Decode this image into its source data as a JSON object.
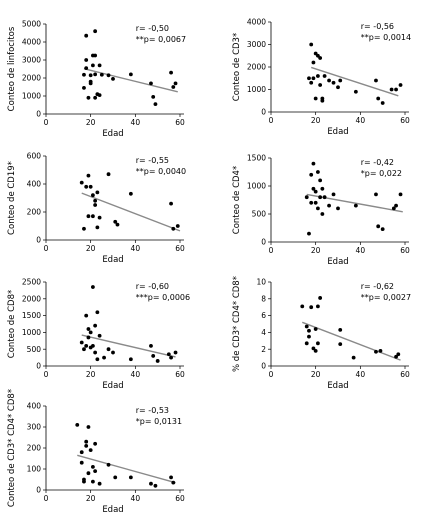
{
  "chart_data": [
    {
      "type": "scatter",
      "ylabel": "Conteo de linfocitos",
      "xlabel": "Edad",
      "r_text": "r= -0,50",
      "p_text": "**p= 0,0067",
      "xlim": [
        0,
        60
      ],
      "xticks": [
        0,
        20,
        40,
        60
      ],
      "ylim": [
        0,
        5000
      ],
      "yticks": [
        0,
        1000,
        2000,
        3000,
        4000,
        5000
      ],
      "trend": [
        [
          17,
          2520
        ],
        [
          59,
          1230
        ]
      ],
      "points": [
        [
          17,
          2180
        ],
        [
          17,
          1450
        ],
        [
          18,
          2550
        ],
        [
          18,
          4350
        ],
        [
          18,
          3000
        ],
        [
          19,
          900
        ],
        [
          20,
          2150
        ],
        [
          20,
          1800
        ],
        [
          20,
          1700
        ],
        [
          21,
          3250
        ],
        [
          21,
          2700
        ],
        [
          22,
          4600
        ],
        [
          22,
          3250
        ],
        [
          22,
          2200
        ],
        [
          22,
          900
        ],
        [
          23,
          1100
        ],
        [
          24,
          1050
        ],
        [
          24,
          2700
        ],
        [
          25,
          2180
        ],
        [
          28,
          2150
        ],
        [
          30,
          1950
        ],
        [
          38,
          2200
        ],
        [
          47,
          1700
        ],
        [
          48,
          950
        ],
        [
          49,
          550
        ],
        [
          56,
          2300
        ],
        [
          57,
          1500
        ],
        [
          58,
          1700
        ]
      ]
    },
    {
      "type": "scatter",
      "ylabel": "Conteo de CD3*",
      "xlabel": "Edad",
      "r_text": "r= -0,56",
      "p_text": "**p= 0,0014",
      "xlim": [
        0,
        60
      ],
      "xticks": [
        0,
        20,
        40,
        60
      ],
      "ylim": [
        0,
        4000
      ],
      "yticks": [
        0,
        1000,
        2000,
        3000,
        4000
      ],
      "trend": [
        [
          18,
          1980
        ],
        [
          57,
          720
        ]
      ],
      "points": [
        [
          17,
          1500
        ],
        [
          18,
          1300
        ],
        [
          18,
          3000
        ],
        [
          19,
          2200
        ],
        [
          19,
          1500
        ],
        [
          20,
          2600
        ],
        [
          20,
          600
        ],
        [
          21,
          2500
        ],
        [
          21,
          1600
        ],
        [
          22,
          2400
        ],
        [
          22,
          1200
        ],
        [
          23,
          500
        ],
        [
          23,
          600
        ],
        [
          24,
          1600
        ],
        [
          26,
          1400
        ],
        [
          28,
          1300
        ],
        [
          30,
          1100
        ],
        [
          31,
          1400
        ],
        [
          38,
          900
        ],
        [
          47,
          1400
        ],
        [
          48,
          600
        ],
        [
          50,
          400
        ],
        [
          54,
          1000
        ],
        [
          56,
          1000
        ],
        [
          58,
          1200
        ]
      ]
    },
    {
      "type": "scatter",
      "ylabel": "Conteo de CD19*",
      "xlabel": "Edad",
      "r_text": "r= -0,55",
      "p_text": "**p= 0,0040",
      "xlim": [
        0,
        60
      ],
      "xticks": [
        0,
        20,
        40,
        60
      ],
      "ylim": [
        0,
        600
      ],
      "yticks": [
        0,
        200,
        400,
        600
      ],
      "trend": [
        [
          16,
          335
        ],
        [
          60,
          65
        ]
      ],
      "points": [
        [
          16,
          410
        ],
        [
          17,
          80
        ],
        [
          18,
          380
        ],
        [
          19,
          170
        ],
        [
          19,
          460
        ],
        [
          20,
          380
        ],
        [
          21,
          320
        ],
        [
          21,
          170
        ],
        [
          22,
          280
        ],
        [
          22,
          250
        ],
        [
          23,
          340
        ],
        [
          23,
          90
        ],
        [
          24,
          160
        ],
        [
          28,
          470
        ],
        [
          31,
          130
        ],
        [
          32,
          110
        ],
        [
          38,
          330
        ],
        [
          56,
          260
        ],
        [
          57,
          80
        ],
        [
          59,
          100
        ]
      ]
    },
    {
      "type": "scatter",
      "ylabel": "Conteo de CD4*",
      "xlabel": "Edad",
      "r_text": "r= -0,42",
      "p_text": "*p= 0,022",
      "xlim": [
        0,
        60
      ],
      "xticks": [
        0,
        20,
        40,
        60
      ],
      "ylim": [
        0,
        1500
      ],
      "yticks": [
        0,
        500,
        1000,
        1500
      ],
      "trend": [
        [
          16,
          850
        ],
        [
          59,
          540
        ]
      ],
      "points": [
        [
          16,
          800
        ],
        [
          17,
          150
        ],
        [
          18,
          1200
        ],
        [
          18,
          700
        ],
        [
          19,
          1400
        ],
        [
          19,
          950
        ],
        [
          20,
          900
        ],
        [
          20,
          700
        ],
        [
          21,
          1250
        ],
        [
          21,
          600
        ],
        [
          22,
          1100
        ],
        [
          22,
          800
        ],
        [
          23,
          950
        ],
        [
          23,
          500
        ],
        [
          24,
          800
        ],
        [
          26,
          650
        ],
        [
          28,
          850
        ],
        [
          30,
          600
        ],
        [
          38,
          650
        ],
        [
          47,
          850
        ],
        [
          48,
          280
        ],
        [
          50,
          230
        ],
        [
          55,
          600
        ],
        [
          56,
          650
        ],
        [
          58,
          850
        ]
      ]
    },
    {
      "type": "scatter",
      "ylabel": "Conteo de CD8*",
      "xlabel": "Edad",
      "r_text": "r= -0,60",
      "p_text": "***p= 0,0006",
      "xlim": [
        0,
        60
      ],
      "xticks": [
        0,
        20,
        40,
        60
      ],
      "ylim": [
        0,
        2500
      ],
      "yticks": [
        0,
        500,
        1000,
        1500,
        2000,
        2500
      ],
      "trend": [
        [
          16,
          920
        ],
        [
          58,
          270
        ]
      ],
      "points": [
        [
          16,
          700
        ],
        [
          17,
          500
        ],
        [
          18,
          600
        ],
        [
          18,
          1500
        ],
        [
          19,
          850
        ],
        [
          19,
          1100
        ],
        [
          20,
          550
        ],
        [
          20,
          1000
        ],
        [
          21,
          600
        ],
        [
          21,
          2350
        ],
        [
          22,
          400
        ],
        [
          22,
          1200
        ],
        [
          23,
          200
        ],
        [
          23,
          1600
        ],
        [
          24,
          900
        ],
        [
          26,
          250
        ],
        [
          28,
          500
        ],
        [
          30,
          400
        ],
        [
          38,
          200
        ],
        [
          47,
          600
        ],
        [
          48,
          300
        ],
        [
          50,
          150
        ],
        [
          55,
          350
        ],
        [
          56,
          250
        ],
        [
          58,
          400
        ]
      ]
    },
    {
      "type": "scatter",
      "ylabel": "% de CD3* CD4* CD8*",
      "xlabel": "Edad",
      "r_text": "r= -0,62",
      "p_text": "**p= 0,0027",
      "xlim": [
        0,
        60
      ],
      "xticks": [
        0,
        20,
        40,
        60
      ],
      "ylim": [
        0,
        10
      ],
      "yticks": [
        0,
        2,
        4,
        6,
        8,
        10
      ],
      "trend": [
        [
          14,
          5.2
        ],
        [
          58,
          0.7
        ]
      ],
      "points": [
        [
          14,
          7.1
        ],
        [
          16,
          2.7
        ],
        [
          16,
          4.7
        ],
        [
          17,
          4.2
        ],
        [
          17,
          3.5
        ],
        [
          18,
          7.0
        ],
        [
          19,
          2.1
        ],
        [
          20,
          1.8
        ],
        [
          20,
          4.4
        ],
        [
          21,
          7.1
        ],
        [
          21,
          2.7
        ],
        [
          22,
          8.1
        ],
        [
          31,
          4.3
        ],
        [
          31,
          2.6
        ],
        [
          37,
          1.0
        ],
        [
          47,
          1.7
        ],
        [
          49,
          1.8
        ],
        [
          56,
          1.1
        ],
        [
          57,
          1.4
        ]
      ]
    },
    {
      "type": "scatter",
      "ylabel": "Conteo de CD3* CD4* CD8*",
      "xlabel": "Edad",
      "r_text": "r= -0,53",
      "p_text": "*p= 0,0131",
      "xlim": [
        0,
        60
      ],
      "xticks": [
        0,
        20,
        40,
        60
      ],
      "ylim": [
        0,
        400
      ],
      "yticks": [
        0,
        100,
        200,
        300,
        400
      ],
      "trend": [
        [
          14,
          165
        ],
        [
          58,
          35
        ]
      ],
      "points": [
        [
          14,
          310
        ],
        [
          16,
          180
        ],
        [
          16,
          130
        ],
        [
          17,
          50
        ],
        [
          17,
          40
        ],
        [
          18,
          230
        ],
        [
          18,
          210
        ],
        [
          19,
          300
        ],
        [
          19,
          80
        ],
        [
          20,
          190
        ],
        [
          21,
          110
        ],
        [
          21,
          40
        ],
        [
          22,
          220
        ],
        [
          22,
          90
        ],
        [
          24,
          30
        ],
        [
          28,
          120
        ],
        [
          31,
          60
        ],
        [
          38,
          60
        ],
        [
          47,
          30
        ],
        [
          49,
          20
        ],
        [
          56,
          60
        ],
        [
          57,
          35
        ]
      ]
    }
  ]
}
